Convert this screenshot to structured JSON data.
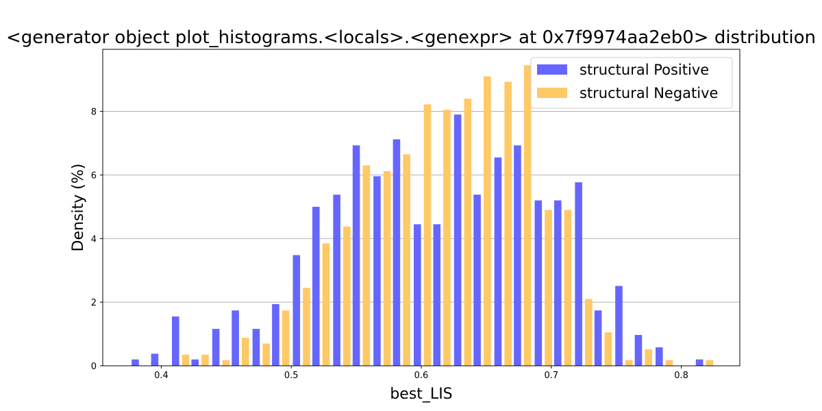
{
  "chart_data": {
    "type": "bar",
    "title": "<generator object plot_histograms.<locals>.<genexpr> at 0x7f9974aa2eb0> distribution",
    "xlabel": "best_LIS",
    "ylabel": "Density (%)",
    "xlim": [
      0.355,
      0.845
    ],
    "ylim": [
      0,
      9.95
    ],
    "xticks": [
      0.4,
      0.5,
      0.6,
      0.7,
      0.8
    ],
    "yticks": [
      0,
      2,
      4,
      6,
      8
    ],
    "grid": "y",
    "legend_position": "upper right",
    "bin_width": 0.0155,
    "x": [
      0.38,
      0.395,
      0.411,
      0.426,
      0.442,
      0.457,
      0.473,
      0.488,
      0.504,
      0.519,
      0.535,
      0.55,
      0.566,
      0.581,
      0.597,
      0.612,
      0.628,
      0.643,
      0.659,
      0.674,
      0.69,
      0.705,
      0.721,
      0.736,
      0.752,
      0.767,
      0.783,
      0.798,
      0.814
    ],
    "series": [
      {
        "name": "structural Positive",
        "color": "#6666ff",
        "values": [
          0.2,
          0.38,
          1.55,
          0.2,
          1.16,
          1.74,
          1.16,
          1.94,
          3.48,
          5.0,
          5.38,
          6.93,
          5.96,
          7.12,
          4.45,
          4.45,
          7.9,
          5.38,
          6.55,
          6.93,
          5.2,
          5.2,
          5.77,
          1.74,
          2.51,
          0.97,
          0.58,
          0.0,
          0.2
        ]
      },
      {
        "name": "structural Negative",
        "color": "#ffc966",
        "values": [
          0.0,
          0.0,
          0.35,
          0.35,
          0.18,
          0.88,
          0.7,
          1.74,
          2.45,
          3.85,
          4.38,
          6.3,
          6.12,
          6.65,
          8.22,
          8.05,
          8.4,
          9.1,
          8.93,
          9.45,
          4.9,
          4.9,
          2.1,
          1.05,
          0.18,
          0.52,
          0.18,
          0.0,
          0.18
        ]
      }
    ]
  }
}
